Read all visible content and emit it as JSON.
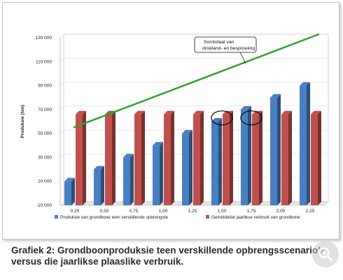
{
  "caption": "Grafiek 2: Grondboonproduksie teen verskillende opbrengsscenario’s versus die jaarlikse plaaslike verbruik.",
  "zoom_icon": "magnifier-plus-icon",
  "colors": {
    "blue": "#4a7fc1",
    "red": "#c0504d",
    "green": "#2ca02c",
    "plot_bg": "#ffffff"
  },
  "chart_data": {
    "type": "bar",
    "ylabel": "Produksie (ton)",
    "xlabel": "",
    "categories": [
      "0,25",
      "0,50",
      "0,75",
      "1,00",
      "1,25",
      "1,50",
      "1,75",
      "2,00",
      "2,25"
    ],
    "series": [
      {
        "name": "Produksie van grondbone teen verskillende opbrengste",
        "color": "#4a7fc1",
        "values": [
          10000,
          20000,
          30000,
          40000,
          50000,
          60000,
          70000,
          80000,
          90000
        ]
      },
      {
        "name": "Gemiddelde jaarlikse verbruik van grondbone",
        "color": "#c0504d",
        "values": [
          66000,
          66000,
          66000,
          66000,
          66000,
          66000,
          66000,
          66000,
          66000
        ]
      }
    ],
    "trend_line": {
      "start": 55000,
      "end": 133000
    },
    "yticks": [
      "-10 000",
      "10 000",
      "30 000",
      "50 000",
      "70 000",
      "90 000",
      "110 000",
      "130 000"
    ],
    "ytick_values": [
      -10000,
      10000,
      30000,
      50000,
      70000,
      90000,
      110000,
      130000
    ],
    "ylim": [
      -10000,
      130000
    ],
    "grid": true,
    "legend_position": "bottom",
    "annotation": {
      "line1": "Somtotaal van",
      "line2": "droëland- en besproeiing"
    },
    "highlighted_categories": [
      "1,50",
      "1,75"
    ]
  }
}
